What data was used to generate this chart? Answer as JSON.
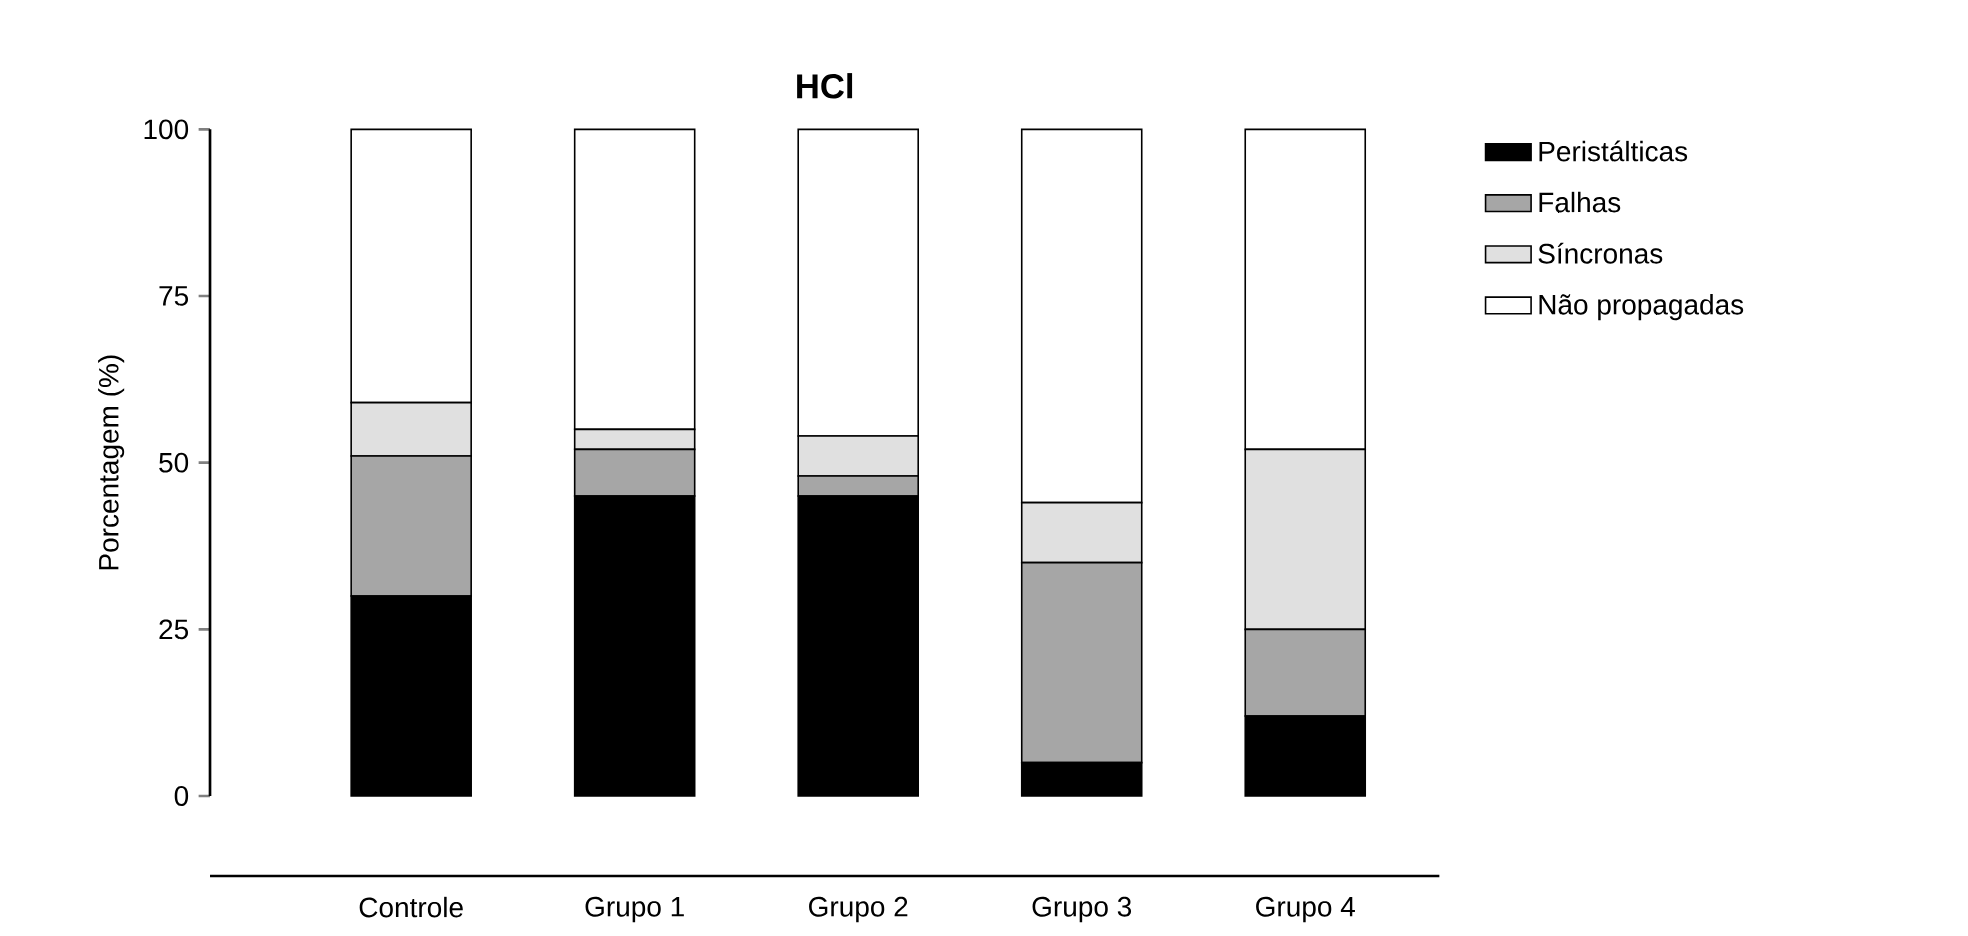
{
  "chart_data": {
    "type": "bar",
    "stacked": true,
    "title": "HCl",
    "ylabel": "Porcentagem (%)",
    "categories": [
      "Controle",
      "Grupo 1",
      "Grupo 2",
      "Grupo 3",
      "Grupo 4"
    ],
    "ylim": [
      0,
      100
    ],
    "yticks": [
      0,
      25,
      50,
      75,
      100
    ],
    "legend": "right",
    "series": [
      {
        "name": "Peristálticas",
        "color": "#000000",
        "values": [
          30,
          45,
          45,
          5,
          12
        ]
      },
      {
        "name": "Falhas",
        "color": "#a6a6a6",
        "values": [
          21,
          7,
          3,
          30,
          13
        ]
      },
      {
        "name": "Síncronas",
        "color": "#e0e0e0",
        "values": [
          8,
          3,
          6,
          9,
          27
        ]
      },
      {
        "name": "Não propagadas",
        "color": "#ffffff",
        "values": [
          41,
          45,
          46,
          56,
          48
        ]
      }
    ]
  }
}
